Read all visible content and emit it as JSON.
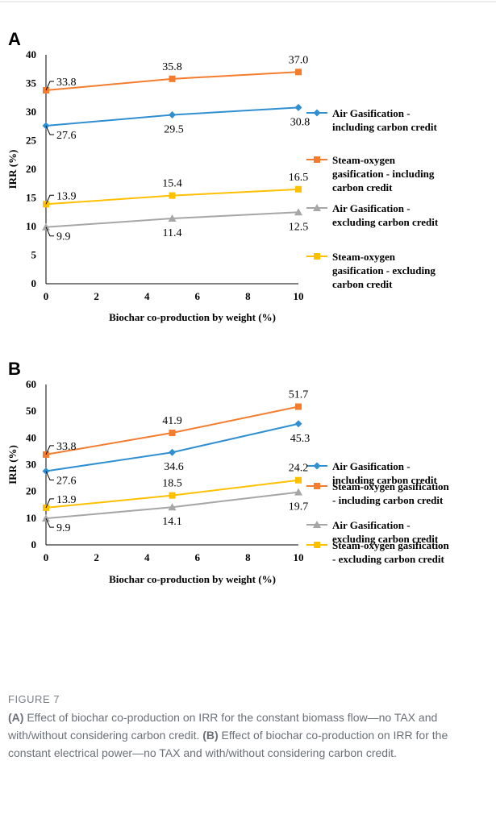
{
  "figure": {
    "title": "FIGURE 7",
    "caption_parts": [
      {
        "bold": true,
        "text": "(A)"
      },
      {
        "bold": false,
        "text": " Effect of biochar co-production on IRR for the constant biomass flow—no TAX and with/without considering carbon credit. "
      },
      {
        "bold": true,
        "text": "(B)"
      },
      {
        "bold": false,
        "text": " Effect of biochar co-production on IRR for the constant electrical power—no TAX and with/without considering carbon credit."
      }
    ]
  },
  "colors": {
    "air_incl": "#2f8fd0",
    "steam_incl": "#f47c2e",
    "air_excl": "#a6a6a6",
    "steam_excl": "#ffc000"
  },
  "chart_data": [
    {
      "panel": "A",
      "type": "line",
      "xlabel": "Biochar co-production by weight (%)",
      "ylabel": "IRR (%)",
      "xlim": [
        0,
        10
      ],
      "ylim": [
        0,
        40
      ],
      "xticks": [
        0,
        2,
        4,
        6,
        8,
        10
      ],
      "yticks": [
        0,
        5,
        10,
        15,
        20,
        25,
        30,
        35,
        40
      ],
      "x": [
        0,
        5,
        10
      ],
      "legend_position": "right",
      "series": [
        {
          "key": "air_incl",
          "name": "Air Gasification - including carbon credit",
          "legend_lines": [
            "Air Gasification -",
            "including carbon credit"
          ],
          "marker": "diamond",
          "values": [
            27.6,
            29.5,
            30.8
          ],
          "labels": [
            "27.6",
            "29.5",
            "30.8"
          ]
        },
        {
          "key": "steam_incl",
          "name": "Steam-oxygen gasification - including carbon credit",
          "legend_lines": [
            "Steam-oxygen",
            "gasification - including",
            "carbon credit"
          ],
          "marker": "square",
          "values": [
            33.8,
            35.8,
            37.0
          ],
          "labels": [
            "33.8",
            "35.8",
            "37.0"
          ]
        },
        {
          "key": "air_excl",
          "name": "Air Gasification - excluding carbon credit",
          "legend_lines": [
            "Air Gasification -",
            "excluding carbon credit"
          ],
          "marker": "triangle",
          "values": [
            9.9,
            11.4,
            12.5
          ],
          "labels": [
            "9.9",
            "11.4",
            "12.5"
          ]
        },
        {
          "key": "steam_excl",
          "name": "Steam-oxygen gasification - excluding carbon credit",
          "legend_lines": [
            "Steam-oxygen",
            "gasification - excluding",
            "carbon credit"
          ],
          "marker": "square",
          "values": [
            13.9,
            15.4,
            16.5
          ],
          "labels": [
            "13.9",
            "15.4",
            "16.5"
          ]
        }
      ]
    },
    {
      "panel": "B",
      "type": "line",
      "xlabel": "Biochar co-production by weight (%)",
      "ylabel": "IRR (%)",
      "xlim": [
        0,
        10
      ],
      "ylim": [
        0,
        60
      ],
      "xticks": [
        0,
        2,
        4,
        6,
        8,
        10
      ],
      "yticks": [
        0,
        10,
        20,
        30,
        40,
        50,
        60
      ],
      "x": [
        0,
        5,
        10
      ],
      "legend_position": "right",
      "series": [
        {
          "key": "air_incl",
          "name": "Air Gasification - including carbon credit",
          "legend_lines": [
            "Air Gasification -",
            "including carbon credit"
          ],
          "marker": "diamond",
          "values": [
            27.6,
            34.6,
            45.3
          ],
          "labels": [
            "27.6",
            "34.6",
            "45.3"
          ]
        },
        {
          "key": "steam_incl",
          "name": "Steam-oxygen gasification - including carbon credit",
          "legend_lines": [
            "Steam-oxygen gasification",
            "- including carbon credit"
          ],
          "marker": "square",
          "values": [
            33.8,
            41.9,
            51.7
          ],
          "labels": [
            "33.8",
            "41.9",
            "51.7"
          ]
        },
        {
          "key": "air_excl",
          "name": "Air Gasification - excluding carbon credit",
          "legend_lines": [
            "Air Gasification -",
            "excluding carbon credit"
          ],
          "marker": "triangle",
          "values": [
            9.9,
            14.1,
            19.7
          ],
          "labels": [
            "9.9",
            "14.1",
            "19.7"
          ]
        },
        {
          "key": "steam_excl",
          "name": "Steam-oxygen gasification - excluding carbon credit",
          "legend_lines": [
            "Steam-oxygen gasification",
            "- excluding carbon credit"
          ],
          "marker": "square",
          "values": [
            13.9,
            18.5,
            24.2
          ],
          "labels": [
            "13.9",
            "18.5",
            "24.2"
          ]
        }
      ]
    }
  ]
}
